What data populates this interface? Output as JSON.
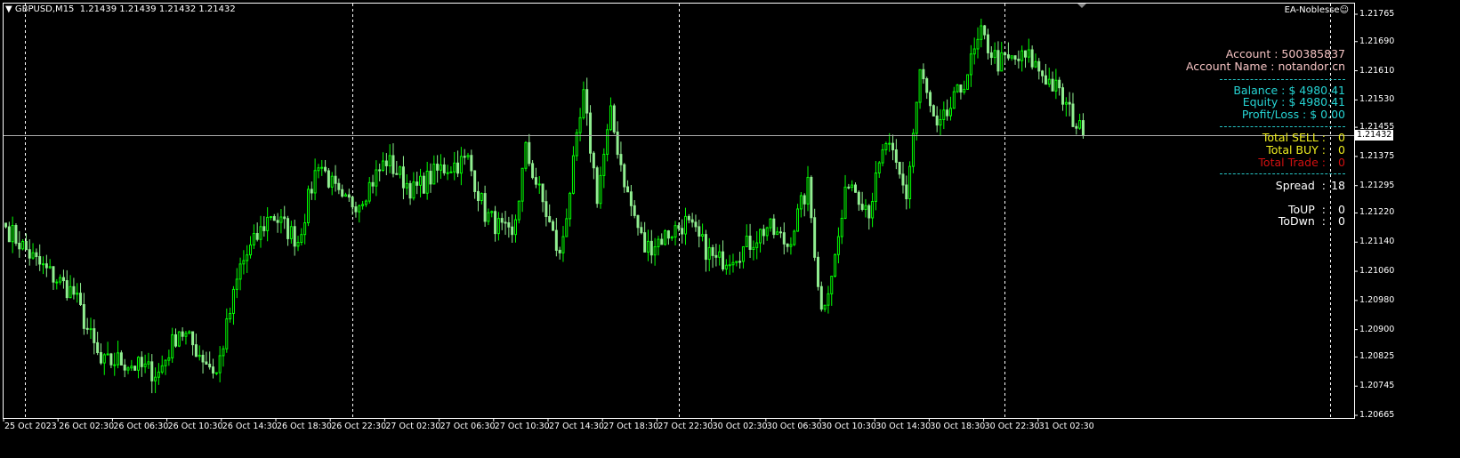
{
  "header": {
    "symbol_line": "GBPUSD,M15  1.21439 1.21439 1.21432 1.21432",
    "ea_name": "EA-Noblesse",
    "ea_icon": "smiley-icon"
  },
  "panel": {
    "account": "Account : 500385837",
    "account_name": "Account Name : notandor cn",
    "balance": "Balance : $ 4980.41",
    "equity": "Equity : $ 4980.41",
    "profit_loss": "Profit/Loss : $ 0.00",
    "total_sell": {
      "label": "Total SELL",
      "sep": ":",
      "value": "0"
    },
    "total_buy": {
      "label": "Total BUY",
      "sep": ":",
      "value": "0"
    },
    "total_trade": {
      "label": "Total Trade",
      "sep": ":",
      "value": "0"
    },
    "spread": {
      "label": "Spread",
      "sep": ":",
      "value": "18"
    },
    "to_up": {
      "label": "ToUP",
      "sep": ":",
      "value": "0"
    },
    "to_down": {
      "label": "ToDwn",
      "sep": ":",
      "value": "0"
    },
    "colors": {
      "account": "#f4c2c2",
      "balance": "#26d4d4",
      "sell_buy": "#f0f020",
      "trade": "#d01010",
      "spread": "#ffffff"
    }
  },
  "chart_data": {
    "type": "candlestick",
    "symbol": "GBPUSD",
    "timeframe": "M15",
    "current_price": "1.21432",
    "ylim": [
      1.20665,
      1.21765
    ],
    "price_ticks": [
      "1.21765",
      "1.21690",
      "1.21610",
      "1.21530",
      "1.21455",
      "1.21375",
      "1.21295",
      "1.21220",
      "1.21140",
      "1.21060",
      "1.20980",
      "1.20900",
      "1.20825",
      "1.20745",
      "1.20665"
    ],
    "time_ticks": [
      "25 Oct 2023",
      "26 Oct 02:30",
      "26 Oct 06:30",
      "26 Oct 10:30",
      "26 Oct 14:30",
      "26 Oct 18:30",
      "26 Oct 22:30",
      "27 Oct 02:30",
      "27 Oct 06:30",
      "27 Oct 10:30",
      "27 Oct 14:30",
      "27 Oct 18:30",
      "27 Oct 22:30",
      "30 Oct 02:30",
      "30 Oct 06:30",
      "30 Oct 10:30",
      "30 Oct 14:30",
      "30 Oct 18:30",
      "30 Oct 22:30",
      "31 Oct 02:30"
    ],
    "bull_color": "#00ff00",
    "bear_color": "#90ee90",
    "close_path": [
      [
        0,
        1.21182
      ],
      [
        9,
        1.21085
      ],
      [
        20,
        1.20999
      ],
      [
        28,
        1.20804
      ],
      [
        33,
        1.20816
      ],
      [
        45,
        1.2078
      ],
      [
        51,
        1.20902
      ],
      [
        62,
        1.2078
      ],
      [
        69,
        1.21072
      ],
      [
        78,
        1.21219
      ],
      [
        86,
        1.21145
      ],
      [
        92,
        1.21365
      ],
      [
        99,
        1.21243
      ],
      [
        104,
        1.21255
      ],
      [
        112,
        1.21365
      ],
      [
        120,
        1.2128
      ],
      [
        128,
        1.21341
      ],
      [
        136,
        1.21365
      ],
      [
        141,
        1.21219
      ],
      [
        149,
        1.21145
      ],
      [
        153,
        1.2139
      ],
      [
        159,
        1.21219
      ],
      [
        163,
        1.21097
      ],
      [
        170,
        1.21536
      ],
      [
        174,
        1.21268
      ],
      [
        178,
        1.21487
      ],
      [
        183,
        1.21268
      ],
      [
        188,
        1.21121
      ],
      [
        200,
        1.21194
      ],
      [
        209,
        1.21085
      ],
      [
        217,
        1.21121
      ],
      [
        224,
        1.21182
      ],
      [
        230,
        1.21133
      ],
      [
        236,
        1.21292
      ],
      [
        240,
        1.2095
      ],
      [
        244,
        1.21097
      ],
      [
        248,
        1.21316
      ],
      [
        254,
        1.21231
      ],
      [
        259,
        1.21414
      ],
      [
        265,
        1.21268
      ],
      [
        269,
        1.21609
      ],
      [
        274,
        1.21438
      ],
      [
        281,
        1.2156
      ],
      [
        287,
        1.21706
      ],
      [
        292,
        1.21633
      ],
      [
        301,
        1.21645
      ],
      [
        309,
        1.2156
      ],
      [
        317,
        1.21432
      ]
    ]
  }
}
